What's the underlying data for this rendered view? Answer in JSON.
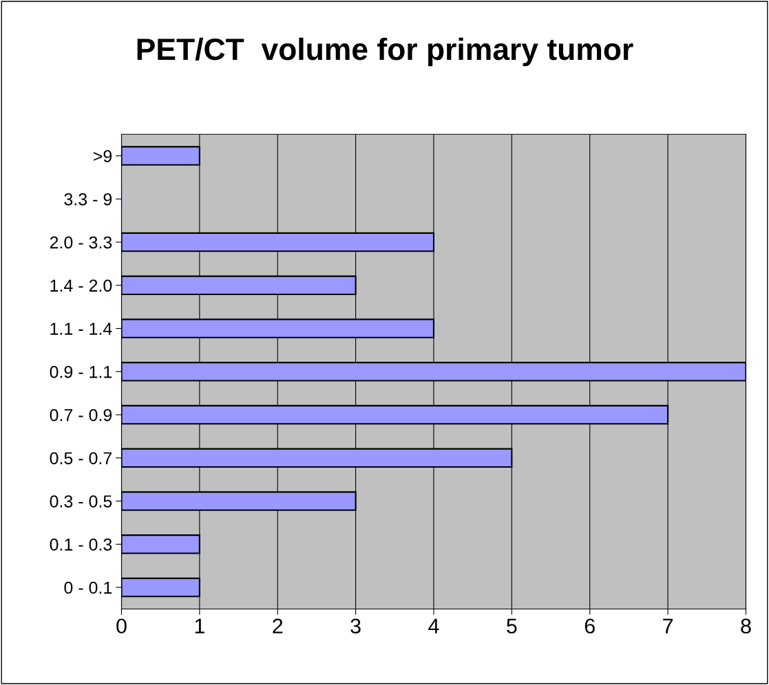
{
  "chart_data": {
    "type": "bar",
    "orientation": "horizontal",
    "title": "PET/CT  volume for primary tumor",
    "categories": [
      ">9",
      "3.3 - 9",
      "2.0 - 3.3",
      "1.4 - 2.0",
      "1.1 - 1.4",
      "0.9 - 1.1",
      "0.7 - 0.9",
      "0.5 - 0.7",
      "0.3 - 0.5",
      "0.1 - 0.3",
      "0 - 0.1"
    ],
    "values": [
      1,
      0,
      4,
      3,
      4,
      8,
      7,
      5,
      3,
      1,
      1
    ],
    "color": "#9999ff",
    "xlim": [
      0,
      8
    ],
    "xticks": [
      0,
      1,
      2,
      3,
      4,
      5,
      6,
      7,
      8
    ],
    "grid": "x"
  }
}
